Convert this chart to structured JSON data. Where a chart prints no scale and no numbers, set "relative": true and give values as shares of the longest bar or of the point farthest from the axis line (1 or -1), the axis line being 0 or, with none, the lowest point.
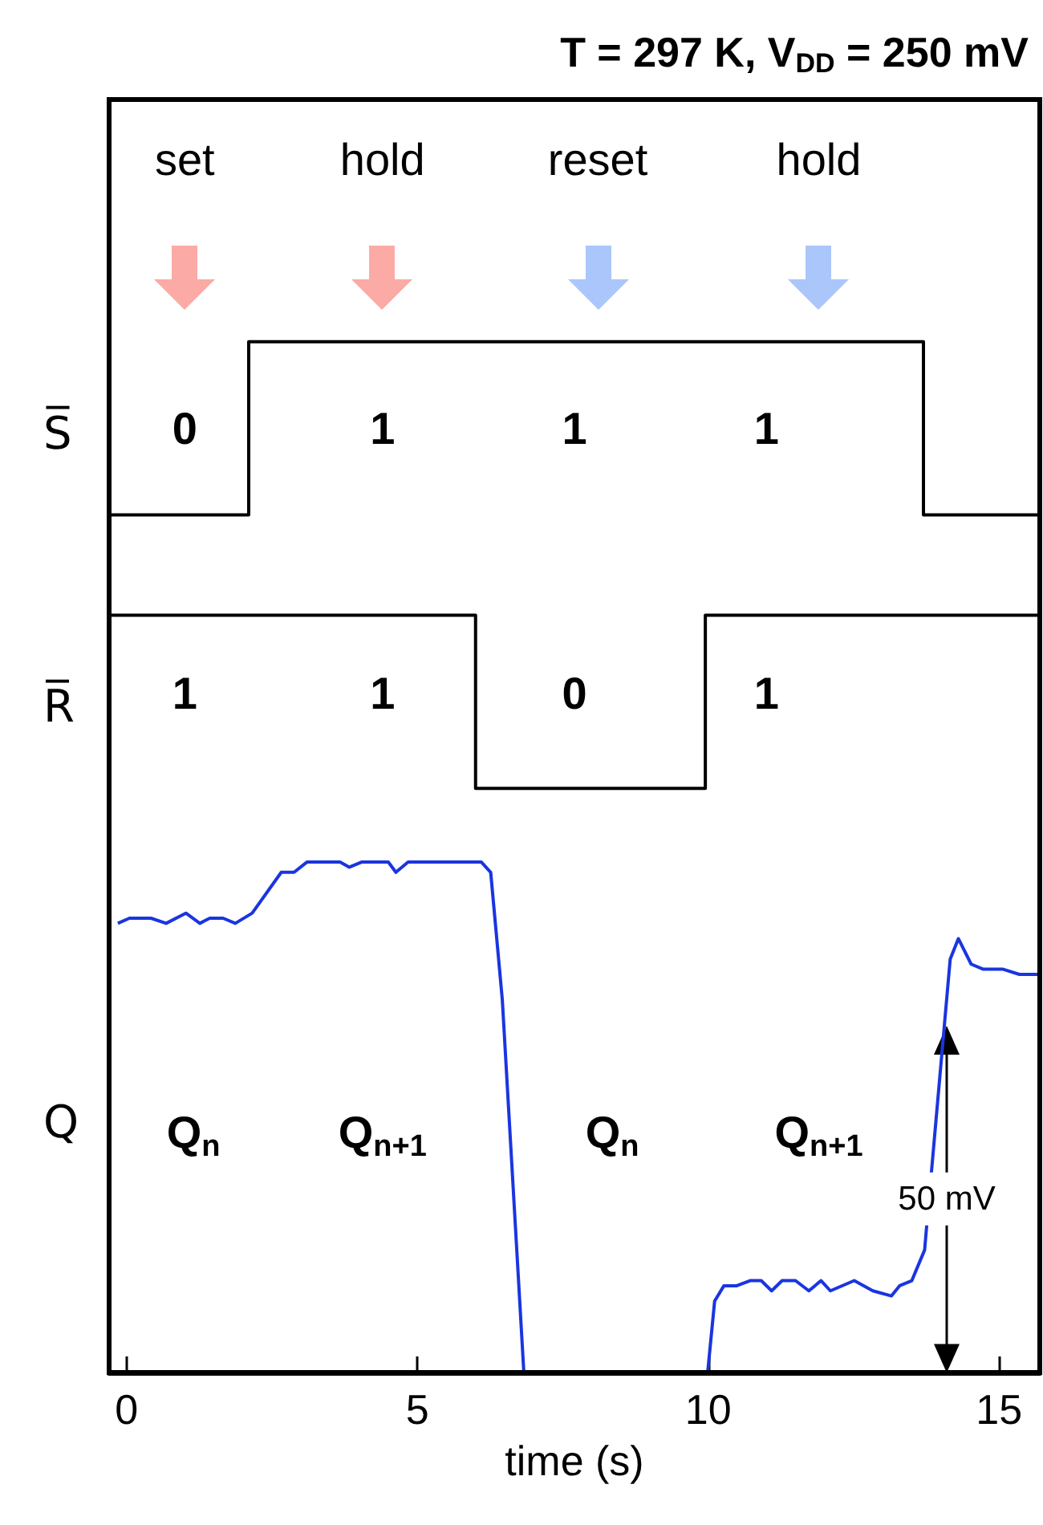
{
  "chart_data": [
    {
      "type": "step",
      "title": "T = 297 K, V$_{DD}$ = 250 mV",
      "ylabel": "S̅",
      "relative": true,
      "tick_labels": false,
      "xlim": [
        -0.3,
        15.7
      ],
      "series": [
        {
          "color": "#000000",
          "x": [
            -0.3,
            2.1,
            13.7,
            15.7
          ],
          "values": [
            0,
            1,
            0,
            0
          ]
        }
      ],
      "annotations": [
        "set",
        "hold",
        "reset",
        "hold",
        "0",
        "1",
        "1",
        "1"
      ]
    },
    {
      "type": "step",
      "ylabel": "R̅",
      "relative": true,
      "tick_labels": false,
      "xlim": [
        -0.3,
        15.7
      ],
      "series": [
        {
          "color": "#000000",
          "x": [
            -0.3,
            6.0,
            9.95,
            15.7
          ],
          "values": [
            1,
            0,
            1,
            1
          ]
        }
      ],
      "annotations": [
        "1",
        "1",
        "0",
        "1"
      ]
    },
    {
      "type": "line",
      "ylabel": "Q",
      "xlabel": "time (s)",
      "relative": true,
      "tick_labels": "x",
      "xlim": [
        -0.3,
        15.7
      ],
      "xticks": [
        0,
        5,
        10,
        15
      ],
      "series": [
        {
          "color": "#1a35e0",
          "x": [
            -0.15,
            0.05,
            0.42,
            0.68,
            1.02,
            1.26,
            1.43,
            1.66,
            1.87,
            2.16,
            2.66,
            2.88,
            3.1,
            3.67,
            3.83,
            4.04,
            4.5,
            4.63,
            4.84,
            6.1,
            6.26,
            6.46,
            6.83,
            6.9,
            9.9,
            9.99,
            10.11,
            10.27,
            10.49,
            10.72,
            10.91,
            11.09,
            11.27,
            11.5,
            11.73,
            11.94,
            12.1,
            12.51,
            12.83,
            13.15,
            13.29,
            13.5,
            13.72,
            13.75,
            14.16,
            14.3,
            14.52,
            14.73,
            15.07,
            15.35,
            15.7
          ],
          "values": [
            0.88,
            0.89,
            0.89,
            0.88,
            0.9,
            0.88,
            0.89,
            0.89,
            0.88,
            0.9,
            0.98,
            0.98,
            1.0,
            1.0,
            0.99,
            1.0,
            1.0,
            0.98,
            1.0,
            1.0,
            0.98,
            0.73,
            0,
            null,
            null,
            0,
            0.14,
            0.17,
            0.17,
            0.18,
            0.18,
            0.16,
            0.18,
            0.18,
            0.16,
            0.18,
            0.16,
            0.18,
            0.16,
            0.15,
            0.17,
            0.18,
            0.24,
            0.28,
            0.81,
            0.85,
            0.8,
            0.79,
            0.79,
            0.78,
            0.78
          ]
        }
      ],
      "annotations": [
        "Q$_{n}$",
        "Q$_{n+1}$",
        "Q$_{n}$",
        "Q$_{n+1}$",
        "50 mV"
      ]
    }
  ]
}
